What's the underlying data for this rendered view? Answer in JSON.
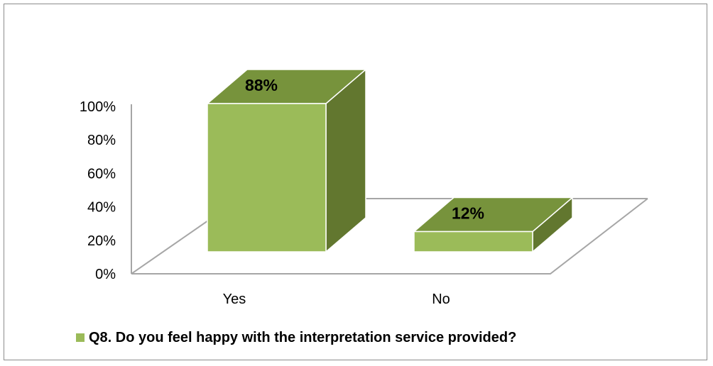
{
  "chart_data": {
    "type": "bar",
    "categories": [
      "Yes",
      "No"
    ],
    "series": [
      {
        "name": "Q8. Do you feel happy with the interpretation service provided?",
        "values": [
          88,
          12
        ]
      }
    ],
    "data_labels": [
      "88%",
      "12%"
    ],
    "ylim": [
      0,
      100
    ],
    "yticks": [
      "0%",
      "20%",
      "40%",
      "60%",
      "80%",
      "100%"
    ],
    "grid": false,
    "legend_position": "bottom",
    "colors": {
      "bar_front": "#9bbb59",
      "bar_top": "#77933c",
      "bar_side": "#62772f",
      "edge": "#ffffff",
      "floor_stroke": "#a6a6a6"
    }
  }
}
